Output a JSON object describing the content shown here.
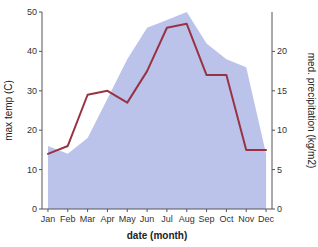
{
  "chart_data": {
    "type": "line",
    "categories": [
      "Jan",
      "Feb",
      "Mar",
      "Apr",
      "May",
      "Jun",
      "Jul",
      "Aug",
      "Sep",
      "Oct",
      "Nov",
      "Dec"
    ],
    "series": [
      {
        "type": "area",
        "axis": "y2",
        "color": "#b0b8e8",
        "values": [
          8,
          7,
          9,
          14,
          19,
          23,
          24,
          25,
          21,
          19,
          18,
          7
        ]
      },
      {
        "type": "line",
        "color": "#993344",
        "values": [
          14,
          16,
          29,
          30,
          27,
          35,
          46,
          47,
          34,
          34,
          15,
          15
        ]
      }
    ],
    "xlabel": "date (month)",
    "ylabel": "max temp (C)",
    "y2label": "med. precipitation (kg/m2)",
    "ylim": [
      0,
      50
    ],
    "yticks": [
      0,
      10,
      20,
      30,
      40,
      50
    ],
    "y2lim": [
      0,
      25
    ],
    "y2ticks": [
      0,
      5,
      10,
      15,
      20
    ],
    "grid": false
  }
}
